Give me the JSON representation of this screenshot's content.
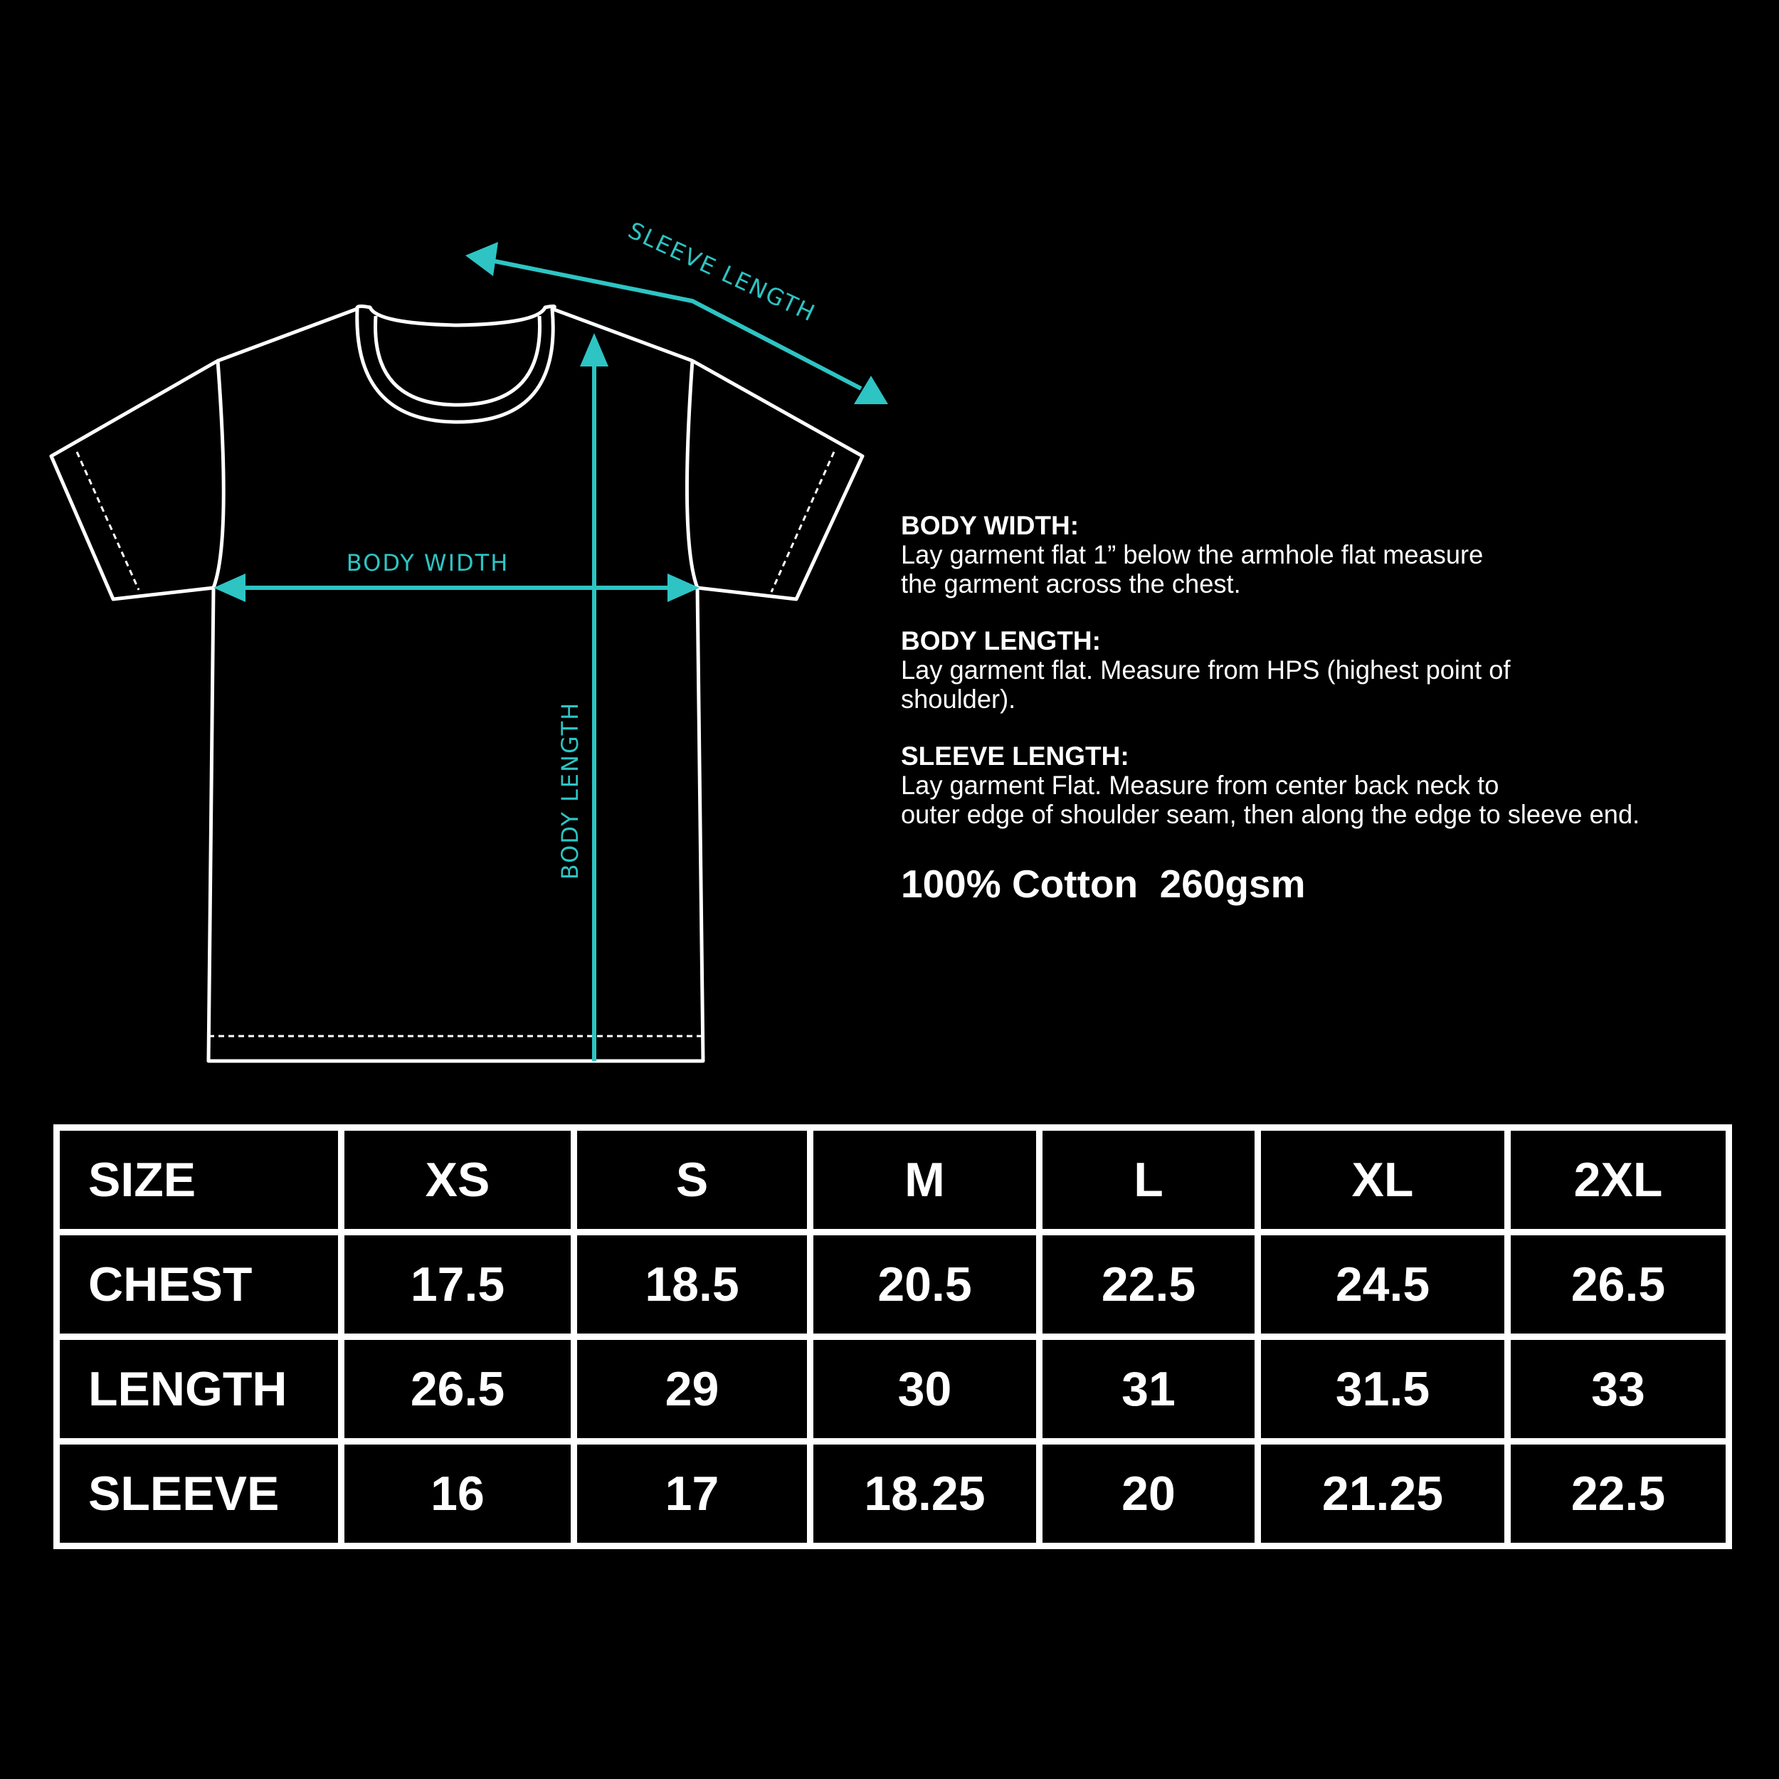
{
  "colors": {
    "accent": "#2ec4c4",
    "outline": "#ffffff",
    "background": "#000000"
  },
  "diagram": {
    "sleeve_length_label": "SLEEVE LENGTH",
    "body_width_label": "BODY WIDTH",
    "body_length_label": "BODY LENGTH"
  },
  "instructions": [
    {
      "heading": "BODY WIDTH:",
      "lines": [
        "Lay garment flat 1” below the armhole flat measure",
        "the garment across the chest."
      ]
    },
    {
      "heading": "BODY LENGTH:",
      "lines": [
        "Lay garment flat. Measure from HPS (highest point of",
        "shoulder)."
      ]
    },
    {
      "heading": "SLEEVE LENGTH:",
      "lines": [
        "Lay garment Flat. Measure from center back neck to",
        "outer edge of shoulder seam, then along the edge to sleeve end."
      ]
    }
  ],
  "fabric": "100% Cotton  260gsm",
  "size_table": {
    "header": [
      "SIZE",
      "XS",
      "S",
      "M",
      "L",
      "XL",
      "2XL"
    ],
    "rows": [
      [
        "CHEST",
        "17.5",
        "18.5",
        "20.5",
        "22.5",
        "24.5",
        "26.5"
      ],
      [
        "LENGTH",
        "26.5",
        "29",
        "30",
        "31",
        "31.5",
        "33"
      ],
      [
        "SLEEVE",
        "16",
        "17",
        "18.25",
        "20",
        "21.25",
        "22.5"
      ]
    ]
  }
}
